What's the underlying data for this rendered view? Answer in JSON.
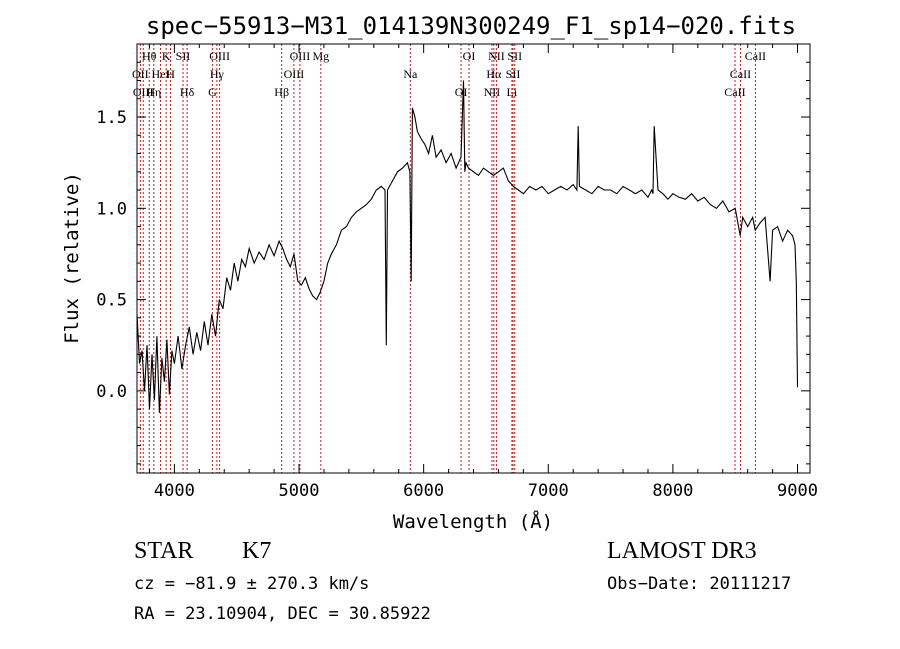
{
  "chart_data": {
    "type": "line",
    "title": "spec−55913−M31_014139N300249_F1_sp14−020.fits",
    "xlabel": "Wavelength (Å)",
    "ylabel": "Flux (relative)",
    "xlim": [
      3700,
      9100
    ],
    "ylim": [
      -0.45,
      1.9
    ],
    "xticks": [
      4000,
      5000,
      6000,
      7000,
      8000,
      9000
    ],
    "xtick_labels": [
      "4000",
      "5000",
      "6000",
      "7000",
      "8000",
      "9000"
    ],
    "yticks": [
      0.0,
      0.5,
      1.0,
      1.5
    ],
    "ytick_labels": [
      "0.0",
      "0.5",
      "1.0",
      "1.5"
    ],
    "grid": false,
    "series": [
      {
        "color": "#000000",
        "x": [
          3700,
          3720,
          3740,
          3760,
          3780,
          3800,
          3820,
          3840,
          3860,
          3880,
          3900,
          3920,
          3940,
          3960,
          3980,
          4000,
          4030,
          4060,
          4090,
          4120,
          4150,
          4180,
          4210,
          4240,
          4270,
          4300,
          4330,
          4360,
          4390,
          4420,
          4450,
          4480,
          4510,
          4540,
          4570,
          4600,
          4640,
          4680,
          4720,
          4760,
          4800,
          4840,
          4870,
          4900,
          4930,
          4960,
          4990,
          5020,
          5050,
          5080,
          5110,
          5140,
          5170,
          5200,
          5230,
          5260,
          5300,
          5340,
          5380,
          5420,
          5460,
          5500,
          5540,
          5580,
          5620,
          5660,
          5690,
          5700,
          5710,
          5750,
          5790,
          5830,
          5870,
          5890,
          5900,
          5910,
          5930,
          5950,
          5980,
          6010,
          6040,
          6070,
          6100,
          6140,
          6180,
          6220,
          6260,
          6300,
          6320,
          6330,
          6340,
          6360,
          6400,
          6440,
          6480,
          6520,
          6560,
          6600,
          6640,
          6680,
          6720,
          6760,
          6800,
          6850,
          6900,
          6950,
          7000,
          7050,
          7100,
          7150,
          7200,
          7230,
          7240,
          7250,
          7300,
          7350,
          7400,
          7450,
          7500,
          7550,
          7600,
          7650,
          7700,
          7750,
          7800,
          7830,
          7840,
          7850,
          7880,
          7920,
          7960,
          8000,
          8050,
          8100,
          8150,
          8200,
          8250,
          8300,
          8350,
          8400,
          8450,
          8500,
          8540,
          8560,
          8600,
          8640,
          8660,
          8700,
          8740,
          8780,
          8800,
          8840,
          8880,
          8920,
          8960,
          8980,
          8990,
          9000
        ],
        "y": [
          0.42,
          0.15,
          0.22,
          0.0,
          0.25,
          -0.1,
          0.2,
          -0.05,
          0.3,
          -0.12,
          0.18,
          0.05,
          0.28,
          -0.02,
          0.22,
          0.15,
          0.3,
          0.12,
          0.25,
          0.35,
          0.2,
          0.32,
          0.22,
          0.38,
          0.25,
          0.42,
          0.3,
          0.5,
          0.45,
          0.62,
          0.55,
          0.7,
          0.6,
          0.72,
          0.68,
          0.78,
          0.7,
          0.76,
          0.72,
          0.8,
          0.74,
          0.82,
          0.78,
          0.72,
          0.68,
          0.75,
          0.6,
          0.58,
          0.62,
          0.56,
          0.52,
          0.5,
          0.54,
          0.6,
          0.7,
          0.75,
          0.8,
          0.88,
          0.9,
          0.95,
          0.98,
          1.0,
          1.02,
          1.05,
          1.1,
          1.12,
          1.1,
          0.25,
          1.1,
          1.15,
          1.2,
          1.22,
          1.25,
          1.2,
          0.6,
          1.55,
          1.5,
          1.42,
          1.38,
          1.35,
          1.3,
          1.4,
          1.28,
          1.32,
          1.25,
          1.3,
          1.22,
          1.28,
          1.7,
          1.2,
          1.25,
          1.22,
          1.2,
          1.18,
          1.22,
          1.2,
          1.18,
          1.2,
          1.22,
          1.15,
          1.12,
          1.1,
          1.08,
          1.12,
          1.1,
          1.12,
          1.08,
          1.1,
          1.12,
          1.1,
          1.13,
          1.1,
          1.45,
          1.12,
          1.1,
          1.08,
          1.12,
          1.1,
          1.1,
          1.08,
          1.12,
          1.1,
          1.08,
          1.1,
          1.06,
          1.1,
          1.08,
          1.45,
          1.1,
          1.08,
          1.05,
          1.08,
          1.06,
          1.05,
          1.08,
          1.04,
          1.06,
          1.02,
          1.0,
          1.04,
          0.98,
          1.0,
          0.85,
          0.95,
          0.9,
          0.95,
          0.88,
          0.92,
          0.95,
          0.6,
          0.88,
          0.9,
          0.82,
          0.88,
          0.85,
          0.8,
          0.6,
          0.02
        ]
      }
    ],
    "lines": [
      {
        "name": "Hθ",
        "wavelength": 3798
      },
      {
        "name": "OII",
        "wavelength": 3727
      },
      {
        "name": "OIII",
        "wavelength": 3750
      },
      {
        "name": "K",
        "wavelength": 3934
      },
      {
        "name": "HeI",
        "wavelength": 3889
      },
      {
        "name": "Hη",
        "wavelength": 3835
      },
      {
        "name": "SII",
        "wavelength": 4069
      },
      {
        "name": "H",
        "wavelength": 3969
      },
      {
        "name": "Hδ",
        "wavelength": 4102
      },
      {
        "name": "OIII",
        "wavelength": 4363
      },
      {
        "name": "Hγ",
        "wavelength": 4341
      },
      {
        "name": "G",
        "wavelength": 4305
      },
      {
        "name": "OIII",
        "wavelength": 5007
      },
      {
        "name": "OIII",
        "wavelength": 4959
      },
      {
        "name": "Hβ",
        "wavelength": 4861
      },
      {
        "name": "Mg",
        "wavelength": 5175
      },
      {
        "name": "Na",
        "wavelength": 5893
      },
      {
        "name": "OI",
        "wavelength": 6300
      },
      {
        "name": "OI",
        "wavelength": 6364
      },
      {
        "name": "Hα",
        "wavelength": 6563
      },
      {
        "name": "NII",
        "wavelength": 6548
      },
      {
        "name": "NII",
        "wavelength": 6584
      },
      {
        "name": "SII",
        "wavelength": 6717
      },
      {
        "name": "Li",
        "wavelength": 6708
      },
      {
        "name": "SII",
        "wavelength": 6731
      },
      {
        "name": "CaII",
        "wavelength": 8542
      },
      {
        "name": "CaII",
        "wavelength": 8498
      },
      {
        "name": "CaII",
        "wavelength": 8662
      }
    ],
    "line_color": "#b22222"
  },
  "info": {
    "class_label": "STAR",
    "subclass": "K7",
    "survey": "LAMOST DR3",
    "cz": "cz = −81.9 ± 270.3 km/s",
    "obs_date": "Obs−Date: 20111217",
    "coords": "RA =  23.10904, DEC =  30.85922"
  }
}
